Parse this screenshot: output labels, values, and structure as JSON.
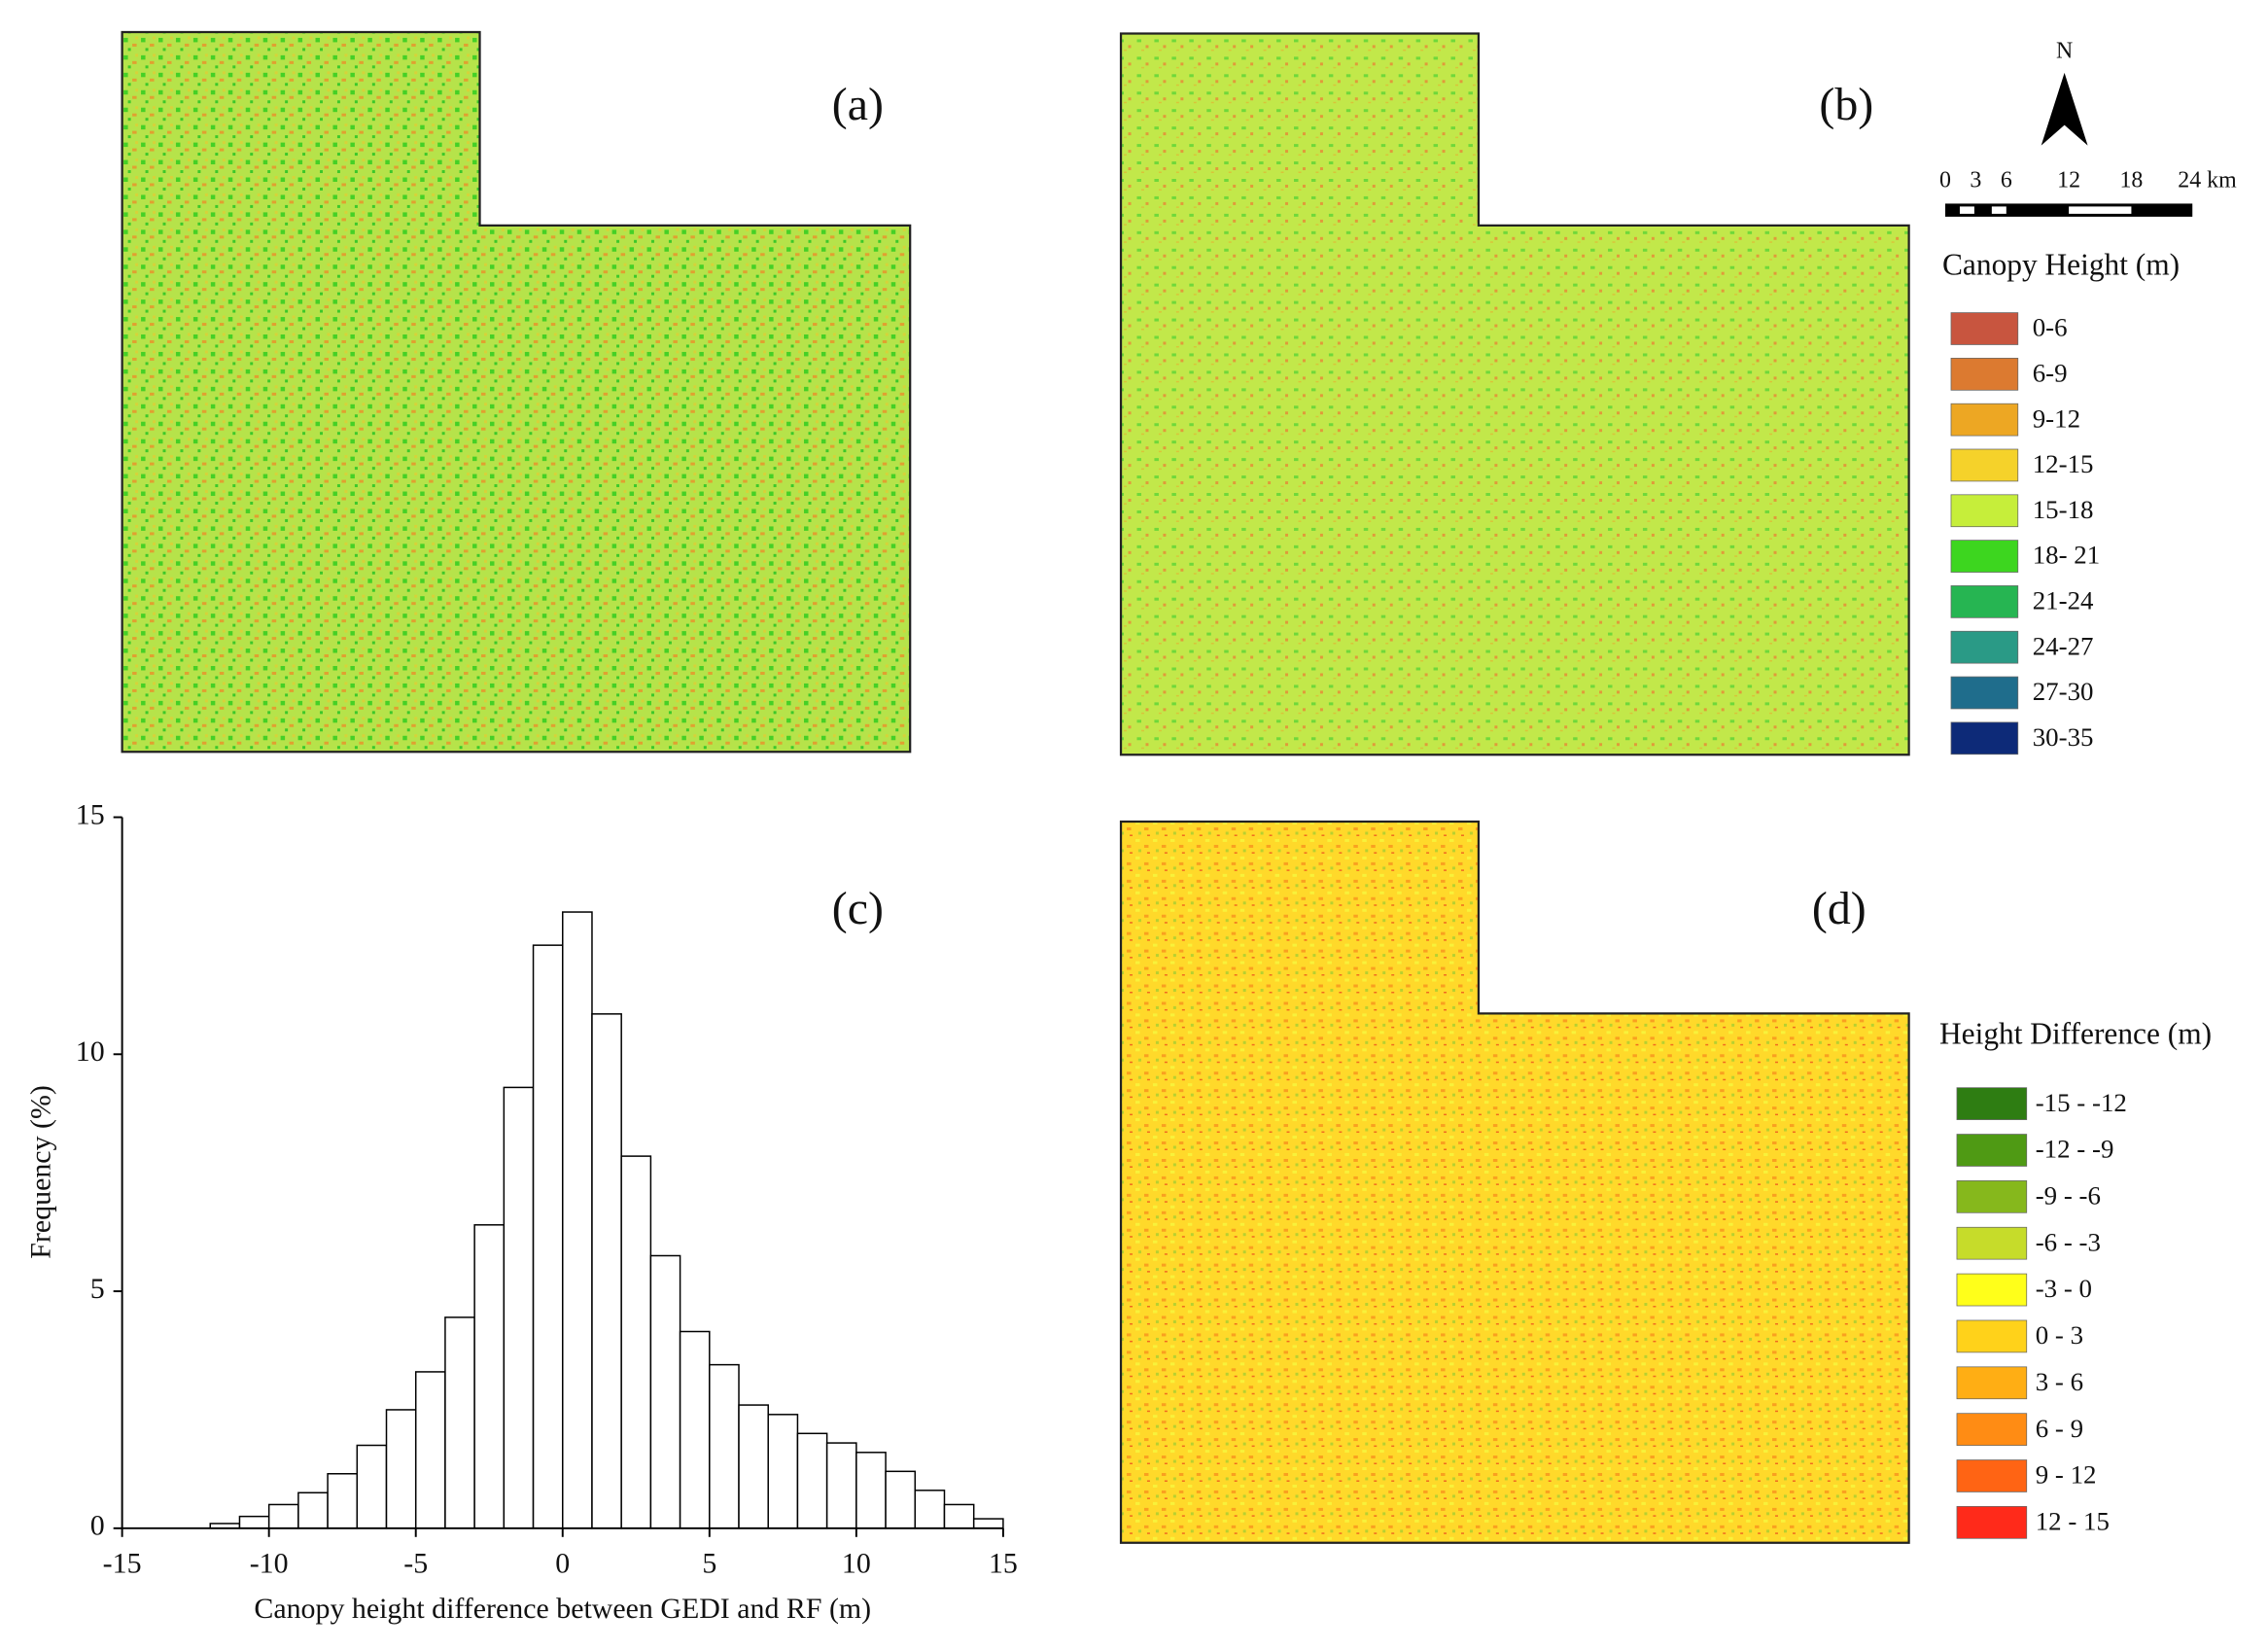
{
  "panels": [
    {
      "label": "(a)"
    },
    {
      "label": "(b)"
    },
    {
      "label": "(d)"
    }
  ],
  "chart_data": {
    "type": "histogram",
    "label": "(c)",
    "xlabel": "Canopy height difference between GEDI and RF (m)",
    "ylabel": "Frequency (%)",
    "bins": [
      -12,
      -11,
      -10,
      -9,
      -8,
      -7,
      -6,
      -5,
      -4,
      -3,
      -2,
      -1,
      0,
      1,
      2,
      3,
      4,
      5,
      6,
      7,
      8,
      9,
      10,
      11,
      12,
      13,
      14,
      15
    ],
    "values": [
      0.1,
      0.25,
      0.5,
      0.75,
      1.15,
      1.75,
      2.5,
      3.3,
      4.45,
      6.4,
      9.3,
      12.3,
      13.0,
      10.85,
      7.85,
      5.75,
      4.15,
      3.45,
      2.6,
      2.4,
      2.0,
      1.8,
      1.6,
      1.2,
      0.8,
      0.5,
      0.2
    ],
    "color": "#ffffff",
    "edge_color": "#000000",
    "xlim": [
      -15,
      15
    ],
    "ylim": [
      0,
      15
    ],
    "xticks": [
      -15,
      -10,
      -5,
      0,
      5,
      10,
      15
    ],
    "yticks": [
      0,
      5,
      10,
      15
    ]
  },
  "north_arrow": {
    "label": "N"
  },
  "scale_bar": {
    "labels": [
      "0",
      "3",
      "6",
      "12",
      "18",
      "24 km"
    ]
  },
  "canopy_legend": {
    "title": "Canopy Height (m)",
    "items": [
      {
        "label": "0-6",
        "color": "#c8553f"
      },
      {
        "label": "6-9",
        "color": "#dc7a30"
      },
      {
        "label": "9-12",
        "color": "#eda723"
      },
      {
        "label": "12-15",
        "color": "#f5d22a"
      },
      {
        "label": "15-18",
        "color": "#c6ee3a"
      },
      {
        "label": "18- 21",
        "color": "#3dd61f"
      },
      {
        "label": "21-24",
        "color": "#26b552"
      },
      {
        "label": "24-27",
        "color": "#2a9a86"
      },
      {
        "label": "27-30",
        "color": "#1f6d8c"
      },
      {
        "label": "30-35",
        "color": "#0d2a78"
      }
    ]
  },
  "difference_legend": {
    "title": "Height Difference (m)",
    "items": [
      {
        "label": "-15 - -12",
        "color": "#2e7d12"
      },
      {
        "label": "-12 - -9",
        "color": "#4f9a14"
      },
      {
        "label": "-9 - -6",
        "color": "#86b81c"
      },
      {
        "label": "-6 - -3",
        "color": "#c6dc2a"
      },
      {
        "label": "-3 - 0",
        "color": "#ffff1a"
      },
      {
        "label": "0 - 3",
        "color": "#ffd21a"
      },
      {
        "label": "3 - 6",
        "color": "#ffae14"
      },
      {
        "label": "6 - 9",
        "color": "#ff8c14"
      },
      {
        "label": "9 - 12",
        "color": "#ff6414"
      },
      {
        "label": "12 - 15",
        "color": "#ff2a1a"
      }
    ]
  }
}
